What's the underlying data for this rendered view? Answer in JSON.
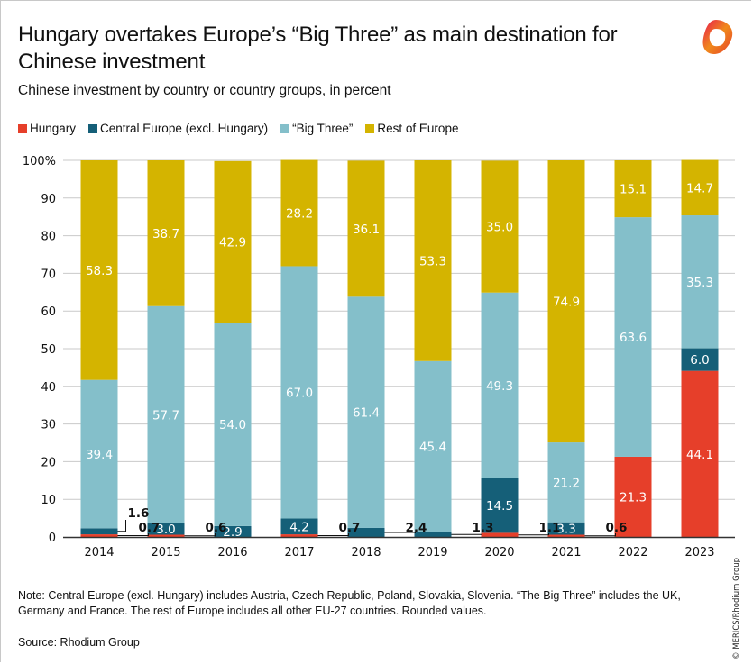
{
  "header": {
    "title": "Hungary overtakes Europe’s “Big Three” as main destination for Chinese investment",
    "subtitle": "Chinese investment by country or country groups, in percent",
    "logo_icon": "merics-logo-icon"
  },
  "footer": {
    "note": "Note: Central Europe (excl. Hungary) includes Austria, Czech Republic, Poland, Slovakia, Slovenia. “The Big Three” includes the UK, Germany and France. The rest of Europe includes all other EU-27 countries. Rounded values.",
    "source": "Source: Rhodium Group",
    "copyright": "© MERICS/Rhodium Group"
  },
  "colors": {
    "hungary": "#e63f2a",
    "central_europe": "#155f78",
    "big_three": "#84bfca",
    "rest_of_europe": "#d4b400",
    "grid": "#c9c9c9",
    "axis": "#333333"
  },
  "chart_data": {
    "type": "bar",
    "stacked": true,
    "title": "Hungary overtakes Europe’s “Big Three” as main destination for Chinese investment",
    "subtitle": "Chinese investment by country or country groups, in percent",
    "xlabel": "",
    "ylabel": "",
    "ylim": [
      0,
      100
    ],
    "yticks": [
      0,
      10,
      20,
      30,
      40,
      50,
      60,
      70,
      80,
      90,
      100
    ],
    "ytick_labels": [
      "0",
      "10",
      "20",
      "30",
      "40",
      "50",
      "60",
      "70",
      "80",
      "90",
      "100%"
    ],
    "grid": true,
    "legend_position": "top-left",
    "categories": [
      "2014",
      "2015",
      "2016",
      "2017",
      "2018",
      "2019",
      "2020",
      "2021",
      "2022",
      "2023"
    ],
    "series": [
      {
        "key": "hungary",
        "name": "Hungary",
        "color": "#e63f2a",
        "values": [
          0.7,
          0.6,
          0,
          0.7,
          0,
          0,
          1.1,
          0.6,
          21.3,
          44.1
        ],
        "labels": [
          "0.7",
          "0.6",
          "",
          "0.7",
          "",
          "",
          "1.1",
          "0.6",
          "21.3",
          "44.1"
        ]
      },
      {
        "key": "central_europe",
        "name": "Central Europe (excl. Hungary)",
        "color": "#155f78",
        "values": [
          1.6,
          3.0,
          2.9,
          4.2,
          2.4,
          1.3,
          14.5,
          3.3,
          0,
          6.0
        ],
        "labels": [
          "1.6",
          "3.0",
          "2.9",
          "4.2",
          "2.4",
          "1.3",
          "14.5",
          "3.3",
          "",
          "6.0"
        ]
      },
      {
        "key": "big_three",
        "name": "“Big Three”",
        "color": "#84bfca",
        "values": [
          39.4,
          57.7,
          54.0,
          67.0,
          61.4,
          45.4,
          49.3,
          21.2,
          63.6,
          35.3
        ],
        "labels": [
          "39.4",
          "57.7",
          "54.0",
          "67.0",
          "61.4",
          "45.4",
          "49.3",
          "21.2",
          "63.6",
          "35.3"
        ]
      },
      {
        "key": "rest_of_europe",
        "name": "Rest of Europe",
        "color": "#d4b400",
        "values": [
          58.3,
          38.7,
          42.9,
          28.2,
          36.1,
          53.3,
          35.0,
          74.9,
          15.1,
          14.7
        ],
        "labels": [
          "58.3",
          "38.7",
          "42.9",
          "28.2",
          "36.1",
          "53.3",
          "35.0",
          "74.9",
          "15.1",
          "14.7"
        ]
      }
    ],
    "callouts": [
      {
        "category": "2014",
        "series": "central_europe",
        "label": "1.6"
      },
      {
        "category": "2014",
        "series": "hungary",
        "label": "0.7"
      },
      {
        "category": "2015",
        "series": "hungary",
        "label": "0.6"
      },
      {
        "category": "2017",
        "series": "hungary",
        "label": "0.7"
      },
      {
        "category": "2018",
        "series": "central_europe",
        "label": "2.4"
      },
      {
        "category": "2019",
        "series": "central_europe",
        "label": "1.3"
      },
      {
        "category": "2020",
        "series": "hungary",
        "label": "1.1"
      },
      {
        "category": "2021",
        "series": "hungary",
        "label": "0.6"
      }
    ]
  }
}
